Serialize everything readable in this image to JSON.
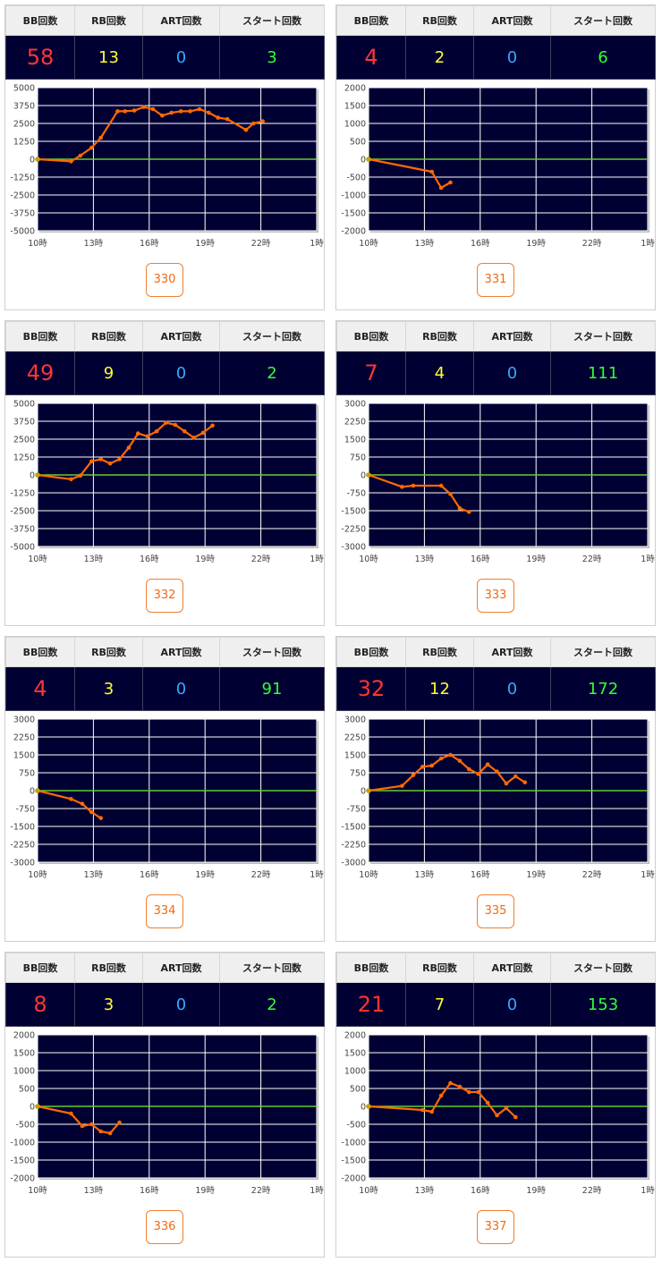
{
  "colors": {
    "panel_bg": "#000033",
    "grid": "#ffffff",
    "zero_line": "#66cc33",
    "series": "#ff6a00",
    "bb": "#ff3535",
    "rb": "#ffff33",
    "art": "#33aaff",
    "start": "#33ff33",
    "machine": "#f06a10"
  },
  "headers": {
    "bb": "BB回数",
    "rb": "RB回数",
    "art": "ART回数",
    "start": "スタート回数"
  },
  "machines": [
    {
      "number": "330",
      "bb": "58",
      "rb": "13",
      "art": "0",
      "start": "3"
    },
    {
      "number": "331",
      "bb": "4",
      "rb": "2",
      "art": "0",
      "start": "6"
    },
    {
      "number": "332",
      "bb": "49",
      "rb": "9",
      "art": "0",
      "start": "2"
    },
    {
      "number": "333",
      "bb": "7",
      "rb": "4",
      "art": "0",
      "start": "111"
    },
    {
      "number": "334",
      "bb": "4",
      "rb": "3",
      "art": "0",
      "start": "91"
    },
    {
      "number": "335",
      "bb": "32",
      "rb": "12",
      "art": "0",
      "start": "172"
    },
    {
      "number": "336",
      "bb": "8",
      "rb": "3",
      "art": "0",
      "start": "2"
    },
    {
      "number": "337",
      "bb": "21",
      "rb": "7",
      "art": "0",
      "start": "153"
    }
  ],
  "chart_data": [
    {
      "type": "line",
      "x_ticks": [
        "10時",
        "13時",
        "16時",
        "19時",
        "22時",
        "1時"
      ],
      "xlim": [
        10,
        25
      ],
      "ylim": [
        -5000,
        5000
      ],
      "y_ticks": [
        5000,
        3750,
        2500,
        1250,
        0,
        -1250,
        -2500,
        -3750,
        -5000
      ],
      "grid": true,
      "series": [
        {
          "x": [
            10,
            11.8,
            12.3,
            12.9,
            13.4,
            14.3,
            14.7,
            15.2,
            15.7,
            16.2,
            16.7,
            17.2,
            17.7,
            18.2,
            18.7,
            19.2,
            19.7,
            20.2,
            21.2,
            21.6,
            22.1
          ],
          "y": [
            0,
            -150,
            250,
            800,
            1500,
            3350,
            3350,
            3400,
            3650,
            3500,
            3050,
            3250,
            3350,
            3350,
            3500,
            3250,
            2900,
            2800,
            2050,
            2500,
            2650
          ]
        }
      ]
    },
    {
      "type": "line",
      "x_ticks": [
        "10時",
        "13時",
        "16時",
        "19時",
        "22時",
        "1時"
      ],
      "xlim": [
        10,
        25
      ],
      "ylim": [
        -2000,
        2000
      ],
      "y_ticks": [
        2000,
        1500,
        1000,
        500,
        0,
        -500,
        -1000,
        -1500,
        -2000
      ],
      "grid": true,
      "series": [
        {
          "x": [
            10,
            13.4,
            13.9,
            14.4
          ],
          "y": [
            0,
            -350,
            -800,
            -650
          ]
        }
      ]
    },
    {
      "type": "line",
      "x_ticks": [
        "10時",
        "13時",
        "16時",
        "19時",
        "22時",
        "1時"
      ],
      "xlim": [
        10,
        25
      ],
      "ylim": [
        -5000,
        5000
      ],
      "y_ticks": [
        5000,
        3750,
        2500,
        1250,
        0,
        -1250,
        -2500,
        -3750,
        -5000
      ],
      "grid": true,
      "series": [
        {
          "x": [
            10,
            11.8,
            12.3,
            12.9,
            13.4,
            13.9,
            14.4,
            14.9,
            15.4,
            15.9,
            16.4,
            16.9,
            17.4,
            17.9,
            18.4,
            18.9,
            19.4
          ],
          "y": [
            0,
            -300,
            -50,
            950,
            1100,
            800,
            1100,
            1900,
            2900,
            2700,
            3050,
            3650,
            3500,
            3050,
            2600,
            2950,
            3450
          ]
        }
      ]
    },
    {
      "type": "line",
      "x_ticks": [
        "10時",
        "13時",
        "16時",
        "19時",
        "22時",
        "1時"
      ],
      "xlim": [
        10,
        25
      ],
      "ylim": [
        -3000,
        3000
      ],
      "y_ticks": [
        3000,
        2250,
        1500,
        750,
        0,
        -750,
        -1500,
        -2250,
        -3000
      ],
      "grid": true,
      "series": [
        {
          "x": [
            10,
            11.8,
            12.4,
            13.9,
            14.4,
            14.9,
            15.4
          ],
          "y": [
            0,
            -500,
            -450,
            -450,
            -800,
            -1400,
            -1550
          ]
        }
      ]
    },
    {
      "type": "line",
      "x_ticks": [
        "10時",
        "13時",
        "16時",
        "19時",
        "22時",
        "1時"
      ],
      "xlim": [
        10,
        25
      ],
      "ylim": [
        -3000,
        3000
      ],
      "y_ticks": [
        3000,
        2250,
        1500,
        750,
        0,
        -750,
        -1500,
        -2250,
        -3000
      ],
      "grid": true,
      "series": [
        {
          "x": [
            10,
            11.8,
            12.4,
            12.9,
            13.4
          ],
          "y": [
            0,
            -350,
            -550,
            -900,
            -1150
          ]
        }
      ]
    },
    {
      "type": "line",
      "x_ticks": [
        "10時",
        "13時",
        "16時",
        "19時",
        "22時",
        "1時"
      ],
      "xlim": [
        10,
        25
      ],
      "ylim": [
        -3000,
        3000
      ],
      "y_ticks": [
        3000,
        2250,
        1500,
        750,
        0,
        -750,
        -1500,
        -2250,
        -3000
      ],
      "grid": true,
      "series": [
        {
          "x": [
            10,
            11.8,
            12.4,
            12.9,
            13.4,
            13.9,
            14.4,
            14.9,
            15.4,
            15.9,
            16.4,
            16.9,
            17.4,
            17.9,
            18.4
          ],
          "y": [
            0,
            200,
            650,
            1000,
            1050,
            1350,
            1500,
            1250,
            900,
            700,
            1100,
            800,
            300,
            600,
            350
          ]
        }
      ]
    },
    {
      "type": "line",
      "x_ticks": [
        "10時",
        "13時",
        "16時",
        "19時",
        "22時",
        "1時"
      ],
      "xlim": [
        10,
        25
      ],
      "ylim": [
        -2000,
        2000
      ],
      "y_ticks": [
        2000,
        1500,
        1000,
        500,
        0,
        -500,
        -1000,
        -1500,
        -2000
      ],
      "grid": true,
      "series": [
        {
          "x": [
            10,
            11.8,
            12.4,
            12.9,
            13.4,
            13.9,
            14.4
          ],
          "y": [
            0,
            -200,
            -550,
            -500,
            -700,
            -750,
            -450
          ]
        }
      ]
    },
    {
      "type": "line",
      "x_ticks": [
        "10時",
        "13時",
        "16時",
        "19時",
        "22時",
        "1時"
      ],
      "xlim": [
        10,
        25
      ],
      "ylim": [
        -2000,
        2000
      ],
      "y_ticks": [
        2000,
        1500,
        1000,
        500,
        0,
        -500,
        -1000,
        -1500,
        -2000
      ],
      "grid": true,
      "series": [
        {
          "x": [
            10,
            12.9,
            13.4,
            13.9,
            14.4,
            14.9,
            15.4,
            15.9,
            16.4,
            16.9,
            17.4,
            17.9
          ],
          "y": [
            0,
            -100,
            -150,
            300,
            650,
            550,
            400,
            400,
            100,
            -250,
            -50,
            -300
          ]
        }
      ]
    }
  ]
}
